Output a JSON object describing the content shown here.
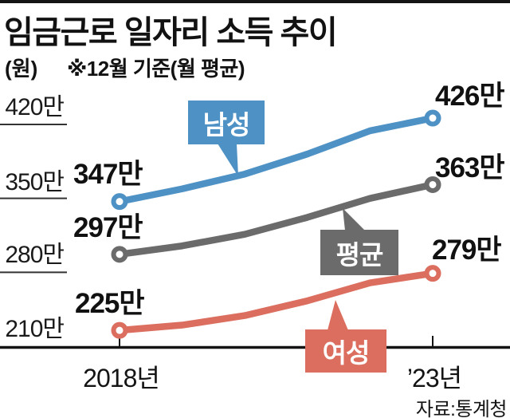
{
  "chart_data": {
    "type": "line",
    "title": "임금근로 일자리 소득 추이",
    "unit_label": "(원)",
    "note": "※12월 기준(월 평균)",
    "source": "자료:통계청",
    "x": [
      "2018",
      "2019",
      "2020",
      "2021",
      "2022",
      "2023"
    ],
    "x_tick_labels": [
      "2018년",
      "’23년"
    ],
    "y_ticks": {
      "labels": [
        "420만",
        "350만",
        "280만",
        "210만"
      ],
      "values": [
        420,
        350,
        280,
        210
      ]
    },
    "ylim": [
      200,
      440
    ],
    "unit": "만원",
    "grid": "left-stub-gridlines",
    "legend_position": "inline-callout-boxes",
    "series": [
      {
        "key": "male",
        "name": "남성",
        "color": "#4e92c5",
        "values": [
          347,
          359,
          373,
          392,
          414,
          426
        ],
        "labeled_points": {
          "2018": 347,
          "2023": 426
        },
        "start_label": "347만",
        "end_label": "426만"
      },
      {
        "key": "average",
        "name": "평균",
        "color": "#6b6b6b",
        "values": [
          297,
          305,
          316,
          332,
          350,
          363
        ],
        "labeled_points": {
          "2018": 297,
          "2023": 363
        },
        "start_label": "297만",
        "end_label": "363만"
      },
      {
        "key": "female",
        "name": "여성",
        "color": "#db6e5e",
        "values": [
          225,
          230,
          239,
          253,
          270,
          279
        ],
        "labeled_points": {
          "2018": 225,
          "2023": 279
        },
        "start_label": "225만",
        "end_label": "279만"
      }
    ],
    "values_note": "Only 2018 and 2023 points carry printed labels; intermediate yearly values estimated from line geometry."
  },
  "colors": {
    "axis": "#141414",
    "grid": "#333333",
    "text": "#111111"
  }
}
